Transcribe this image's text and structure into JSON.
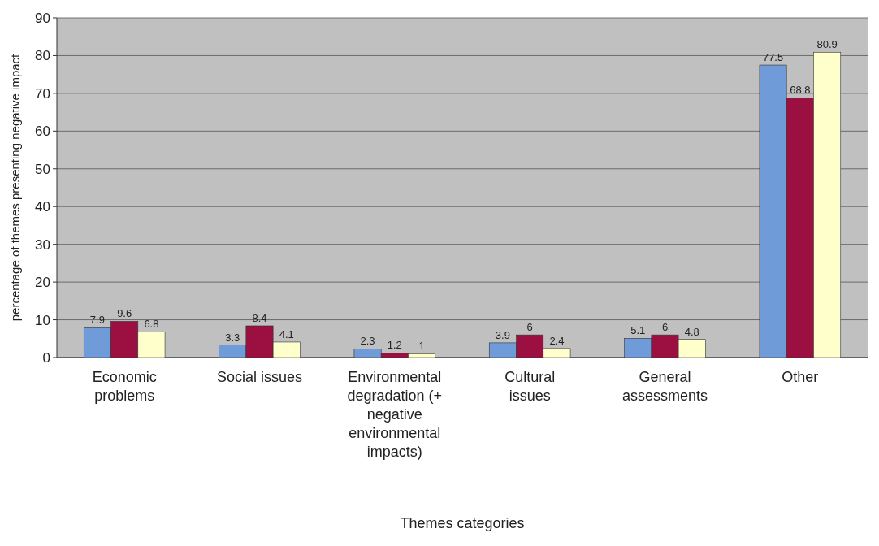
{
  "chart_data": {
    "type": "bar",
    "xlabel": "Themes categories",
    "ylabel": "percentage of themes presenting negative impact",
    "categories": [
      "Economic problems",
      "Social issues",
      "Environmental degradation (+ negative environmental impacts)",
      "Cultural issues",
      "General assessments",
      "Other"
    ],
    "series": [
      {
        "color": "#6f9bd8",
        "values": [
          7.9,
          3.3,
          2.3,
          3.9,
          5.1,
          77.5
        ]
      },
      {
        "color": "#9b1040",
        "values": [
          9.6,
          8.4,
          1.2,
          6,
          6,
          68.8
        ]
      },
      {
        "color": "#ffffcc",
        "values": [
          6.8,
          4.1,
          1,
          2.4,
          4.8,
          80.9
        ]
      }
    ],
    "ylim": [
      0,
      90
    ],
    "yticks": [
      0,
      10,
      20,
      30,
      40,
      50,
      60,
      70,
      80,
      90
    ],
    "grid": "y",
    "data_labels": true
  }
}
